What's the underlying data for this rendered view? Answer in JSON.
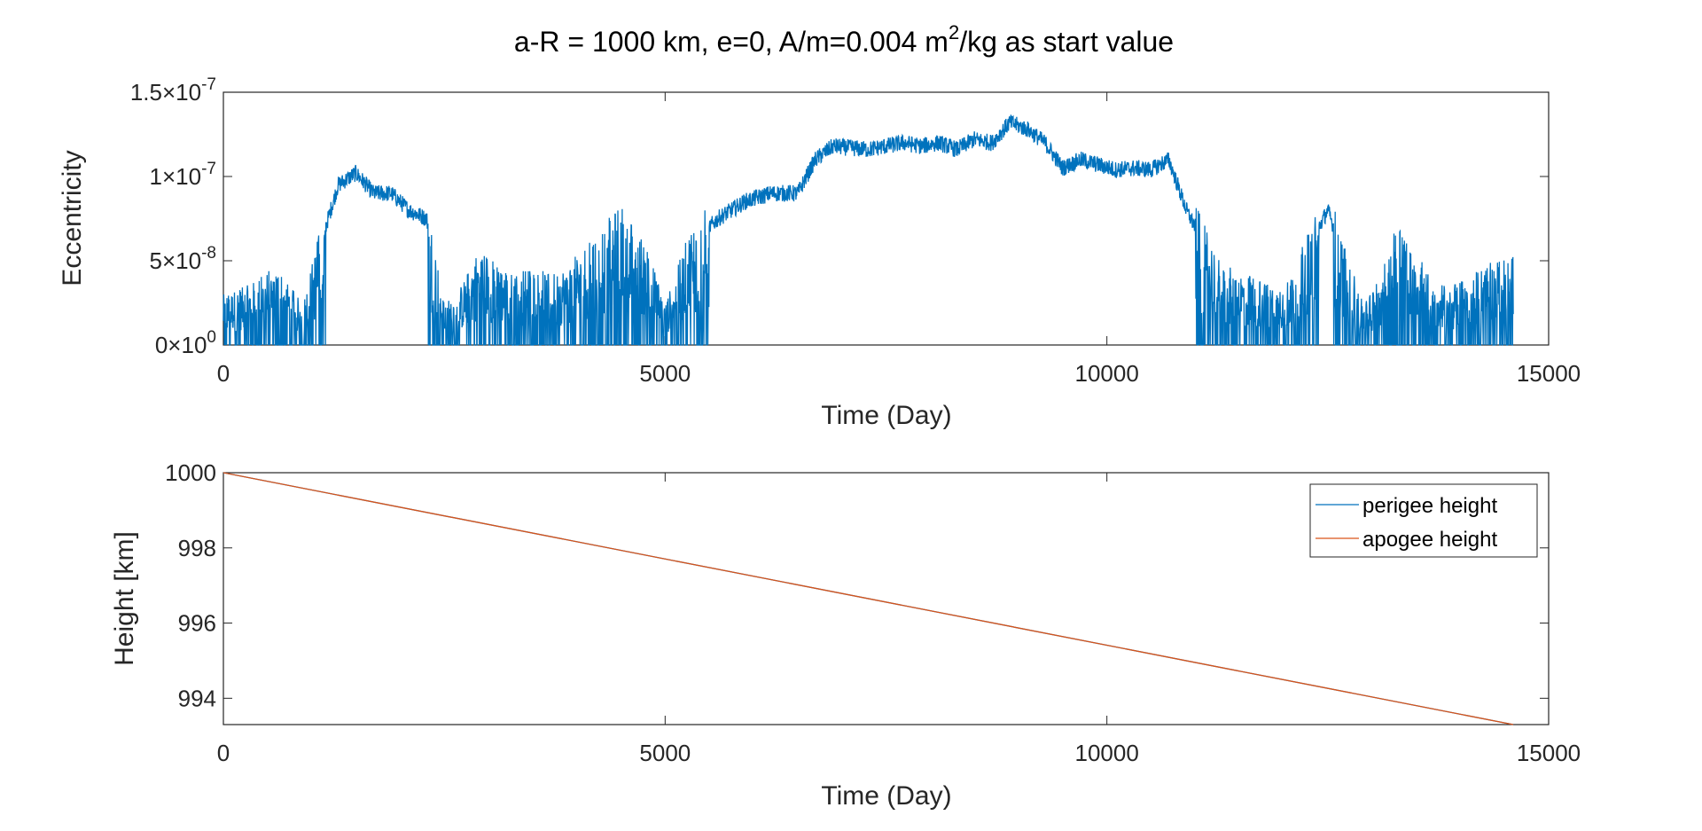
{
  "chart_data": [
    {
      "type": "line",
      "title": "a-R = 1000 km, e=0, A/m=0.004 m²/kg as start value",
      "title_parts": {
        "main": "a-R = 1000 km, e=0, A/m=0.004 m",
        "sup": "2",
        "rest": "/kg as start value"
      },
      "xlabel": "Time (Day)",
      "ylabel": "Eccentricity",
      "xlim": [
        0,
        15000
      ],
      "ylim": [
        0,
        1.5e-07
      ],
      "xticks": [
        "0",
        "5000",
        "10000",
        "15000"
      ],
      "xtick_values": [
        0,
        5000,
        10000,
        15000
      ],
      "yticks": [
        {
          "value": 0,
          "mant": "0",
          "exp": "0"
        },
        {
          "value": 5e-08,
          "mant": "5",
          "exp": "-8"
        },
        {
          "value": 1e-07,
          "mant": "1",
          "exp": "-7"
        },
        {
          "value": 1.5e-07,
          "mant": "1.5",
          "exp": "-7"
        }
      ],
      "grid": false,
      "series": [
        {
          "color": "#0072BD",
          "noisy": true,
          "x": [
            0,
            300,
            600,
            900,
            1100,
            1300,
            1500,
            1700,
            1900,
            2100,
            2300,
            2500,
            2700,
            2900,
            3100,
            3300,
            3500,
            3700,
            3900,
            4100,
            4300,
            4500,
            4800,
            5000,
            5300,
            5600,
            5900,
            6200,
            6500,
            6700,
            6900,
            7100,
            7300,
            7500,
            7700,
            7900,
            8100,
            8300,
            8500,
            8700,
            8900,
            9100,
            9300,
            9500,
            9700,
            9900,
            10100,
            10300,
            10500,
            10700,
            10900,
            11100,
            11300,
            11600,
            11900,
            12100,
            12300,
            12500,
            12700,
            12900,
            13100,
            13300,
            13500,
            13700,
            13900,
            14100,
            14300,
            14600
          ],
          "y": [
            2.5e-08,
            3e-08,
            4e-08,
            2e-08,
            6e-08,
            9.5e-08,
            1.02e-07,
            9e-08,
            9e-08,
            8e-08,
            7.5e-08,
            2e-08,
            3e-08,
            5e-08,
            4e-08,
            3.5e-08,
            4e-08,
            3.5e-08,
            4e-08,
            5e-08,
            6e-08,
            7e-08,
            5e-08,
            2e-08,
            6e-08,
            7.5e-08,
            8.5e-08,
            9e-08,
            9e-08,
            1.1e-07,
            1.18e-07,
            1.17e-07,
            1.16e-07,
            1.18e-07,
            1.2e-07,
            1.18e-07,
            1.2e-07,
            1.16e-07,
            1.22e-07,
            1.2e-07,
            1.32e-07,
            1.28e-07,
            1.2e-07,
            1.05e-07,
            1.1e-07,
            1.07e-07,
            1.04e-07,
            1.05e-07,
            1.04e-07,
            1.1e-07,
            8e-08,
            6e-08,
            4e-08,
            3.5e-08,
            3e-08,
            3.5e-08,
            6e-08,
            8e-08,
            5e-08,
            2e-08,
            3.5e-08,
            6.5e-08,
            5e-08,
            3e-08,
            3e-08,
            3.5e-08,
            4e-08,
            4.5e-08
          ]
        }
      ]
    },
    {
      "type": "line",
      "title": "",
      "xlabel": "Time (Day)",
      "ylabel": "Height [km]",
      "xlim": [
        0,
        15000
      ],
      "ylim": [
        993.3,
        1000
      ],
      "xticks": [
        "0",
        "5000",
        "10000",
        "15000"
      ],
      "xtick_values": [
        0,
        5000,
        10000,
        15000
      ],
      "yticks": [
        {
          "value": 994,
          "label": "994"
        },
        {
          "value": 996,
          "label": "996"
        },
        {
          "value": 998,
          "label": "998"
        },
        {
          "value": 1000,
          "label": "1000"
        }
      ],
      "grid": false,
      "legend_position": "top-right",
      "series": [
        {
          "name": "perigee height",
          "color": "#0072BD",
          "x": [
            0,
            14600
          ],
          "y": [
            1000,
            993.3
          ]
        },
        {
          "name": "apogee height",
          "color": "#D95319",
          "x": [
            0,
            14600
          ],
          "y": [
            1000,
            993.3
          ]
        }
      ]
    }
  ]
}
